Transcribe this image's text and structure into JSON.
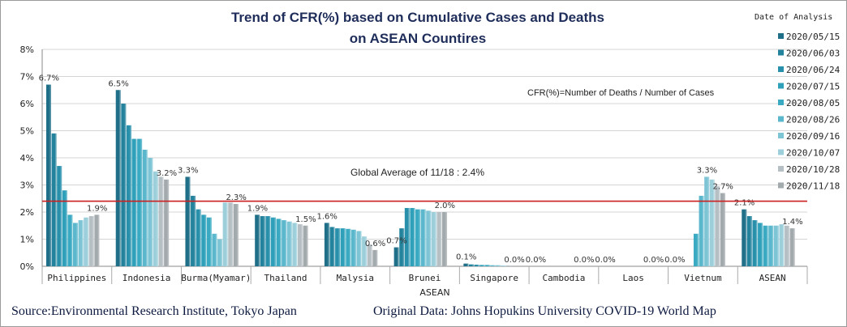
{
  "chart_data": {
    "type": "bar",
    "title_line1": "Trend of CFR(%) based on Cumulative Cases and Deaths",
    "title_line2": "on ASEAN Countires",
    "xlabel": "ASEAN",
    "ylabel": "",
    "ylim": [
      0,
      8
    ],
    "yticks": [
      "0%",
      "1%",
      "2%",
      "3%",
      "4%",
      "5%",
      "6%",
      "7%",
      "8%"
    ],
    "grid": true,
    "legend_title": "Date of Analysis",
    "legend_placement": "right",
    "categories": [
      "Philippines",
      "Indonesia",
      "Burma(Myamar)",
      "Thailand",
      "Malysia",
      "Brunei",
      "Singapore",
      "Cambodia",
      "Laos",
      "Vietnum",
      "ASEAN"
    ],
    "series": [
      {
        "name": "2020/05/15",
        "color": "#1f6f88",
        "values": [
          6.7,
          6.5,
          3.3,
          1.9,
          1.6,
          0.7,
          0.1,
          0.0,
          0.0,
          0.0,
          2.1
        ]
      },
      {
        "name": "2020/06/03",
        "color": "#23829c",
        "values": [
          4.9,
          6.0,
          2.6,
          1.85,
          1.45,
          1.4,
          0.07,
          0.0,
          0.0,
          0.0,
          1.85
        ]
      },
      {
        "name": "2020/06/24",
        "color": "#2990ac",
        "values": [
          3.7,
          5.2,
          2.1,
          1.85,
          1.4,
          2.15,
          0.06,
          0.0,
          0.0,
          0.0,
          1.7
        ]
      },
      {
        "name": "2020/07/15",
        "color": "#2fa0ba",
        "values": [
          2.8,
          4.7,
          1.9,
          1.8,
          1.4,
          2.15,
          0.05,
          0.0,
          0.0,
          0.0,
          1.6
        ]
      },
      {
        "name": "2020/08/05",
        "color": "#3aaac2",
        "values": [
          1.9,
          4.7,
          1.8,
          1.75,
          1.38,
          2.1,
          0.05,
          0.0,
          0.0,
          1.2,
          1.5
        ]
      },
      {
        "name": "2020/08/26",
        "color": "#5ab7cc",
        "values": [
          1.6,
          4.3,
          1.2,
          1.7,
          1.35,
          2.1,
          0.04,
          0.0,
          0.0,
          2.6,
          1.5
        ]
      },
      {
        "name": "2020/09/16",
        "color": "#7dc4d5",
        "values": [
          1.7,
          4.0,
          1.0,
          1.65,
          1.3,
          2.05,
          0.04,
          0.0,
          0.0,
          3.3,
          1.5
        ]
      },
      {
        "name": "2020/10/07",
        "color": "#9dcfdb",
        "values": [
          1.8,
          3.5,
          2.35,
          1.6,
          1.1,
          2.0,
          0.03,
          0.0,
          0.0,
          3.2,
          1.55
        ]
      },
      {
        "name": "2020/10/28",
        "color": "#b5bfc4",
        "values": [
          1.85,
          3.3,
          2.35,
          1.55,
          0.8,
          2.0,
          0.03,
          0.0,
          0.0,
          2.95,
          1.5
        ]
      },
      {
        "name": "2020/11/18",
        "color": "#a3aaae",
        "values": [
          1.9,
          3.2,
          2.3,
          1.5,
          0.6,
          2.0,
          0.0,
          0.0,
          0.0,
          2.7,
          1.4
        ]
      }
    ],
    "data_labels": [
      {
        "category": "Philippines",
        "series": 0,
        "text": "6.7%"
      },
      {
        "category": "Philippines",
        "series": 9,
        "text": "1.9%"
      },
      {
        "category": "Indonesia",
        "series": 0,
        "text": "6.5%"
      },
      {
        "category": "Indonesia",
        "series": 9,
        "text": "3.2%"
      },
      {
        "category": "Burma(Myamar)",
        "series": 0,
        "text": "3.3%"
      },
      {
        "category": "Burma(Myamar)",
        "series": 9,
        "text": "2.3%"
      },
      {
        "category": "Thailand",
        "series": 0,
        "text": "1.9%"
      },
      {
        "category": "Thailand",
        "series": 9,
        "text": "1.5%"
      },
      {
        "category": "Malysia",
        "series": 0,
        "text": "1.6%"
      },
      {
        "category": "Malysia",
        "series": 9,
        "text": "0.6%"
      },
      {
        "category": "Brunei",
        "series": 0,
        "text": "0.7%"
      },
      {
        "category": "Brunei",
        "series": 9,
        "text": "2.0%"
      },
      {
        "category": "Singapore",
        "series": 0,
        "text": "0.1%"
      },
      {
        "category": "Singapore",
        "series": 9,
        "text": "0.0%"
      },
      {
        "category": "Cambodia",
        "series": 0,
        "text": "0.0%"
      },
      {
        "category": "Cambodia",
        "series": 9,
        "text": "0.0%"
      },
      {
        "category": "Laos",
        "series": 0,
        "text": "0.0%"
      },
      {
        "category": "Laos",
        "series": 9,
        "text": "0.0%"
      },
      {
        "category": "Vietnum",
        "series": 0,
        "text": "0.0%"
      },
      {
        "category": "Vietnum",
        "series": 6,
        "text": "3.3%"
      },
      {
        "category": "Vietnum",
        "series": 9,
        "text": "2.7%"
      },
      {
        "category": "ASEAN",
        "series": 0,
        "text": "2.1%"
      },
      {
        "category": "ASEAN",
        "series": 9,
        "text": "1.4%"
      }
    ],
    "reference_line": {
      "value": 2.4,
      "label": "Global Average of 11/18 : 2.4%",
      "color": "#cc1f1f"
    },
    "annotation": "CFR(%)=Number of  Deaths / Number of Cases"
  },
  "footer": {
    "source": "Source:Environmental Research Institute, Tokyo Japan",
    "original": "Original Data: Johns Hopukins University COVID-19 World Map"
  }
}
